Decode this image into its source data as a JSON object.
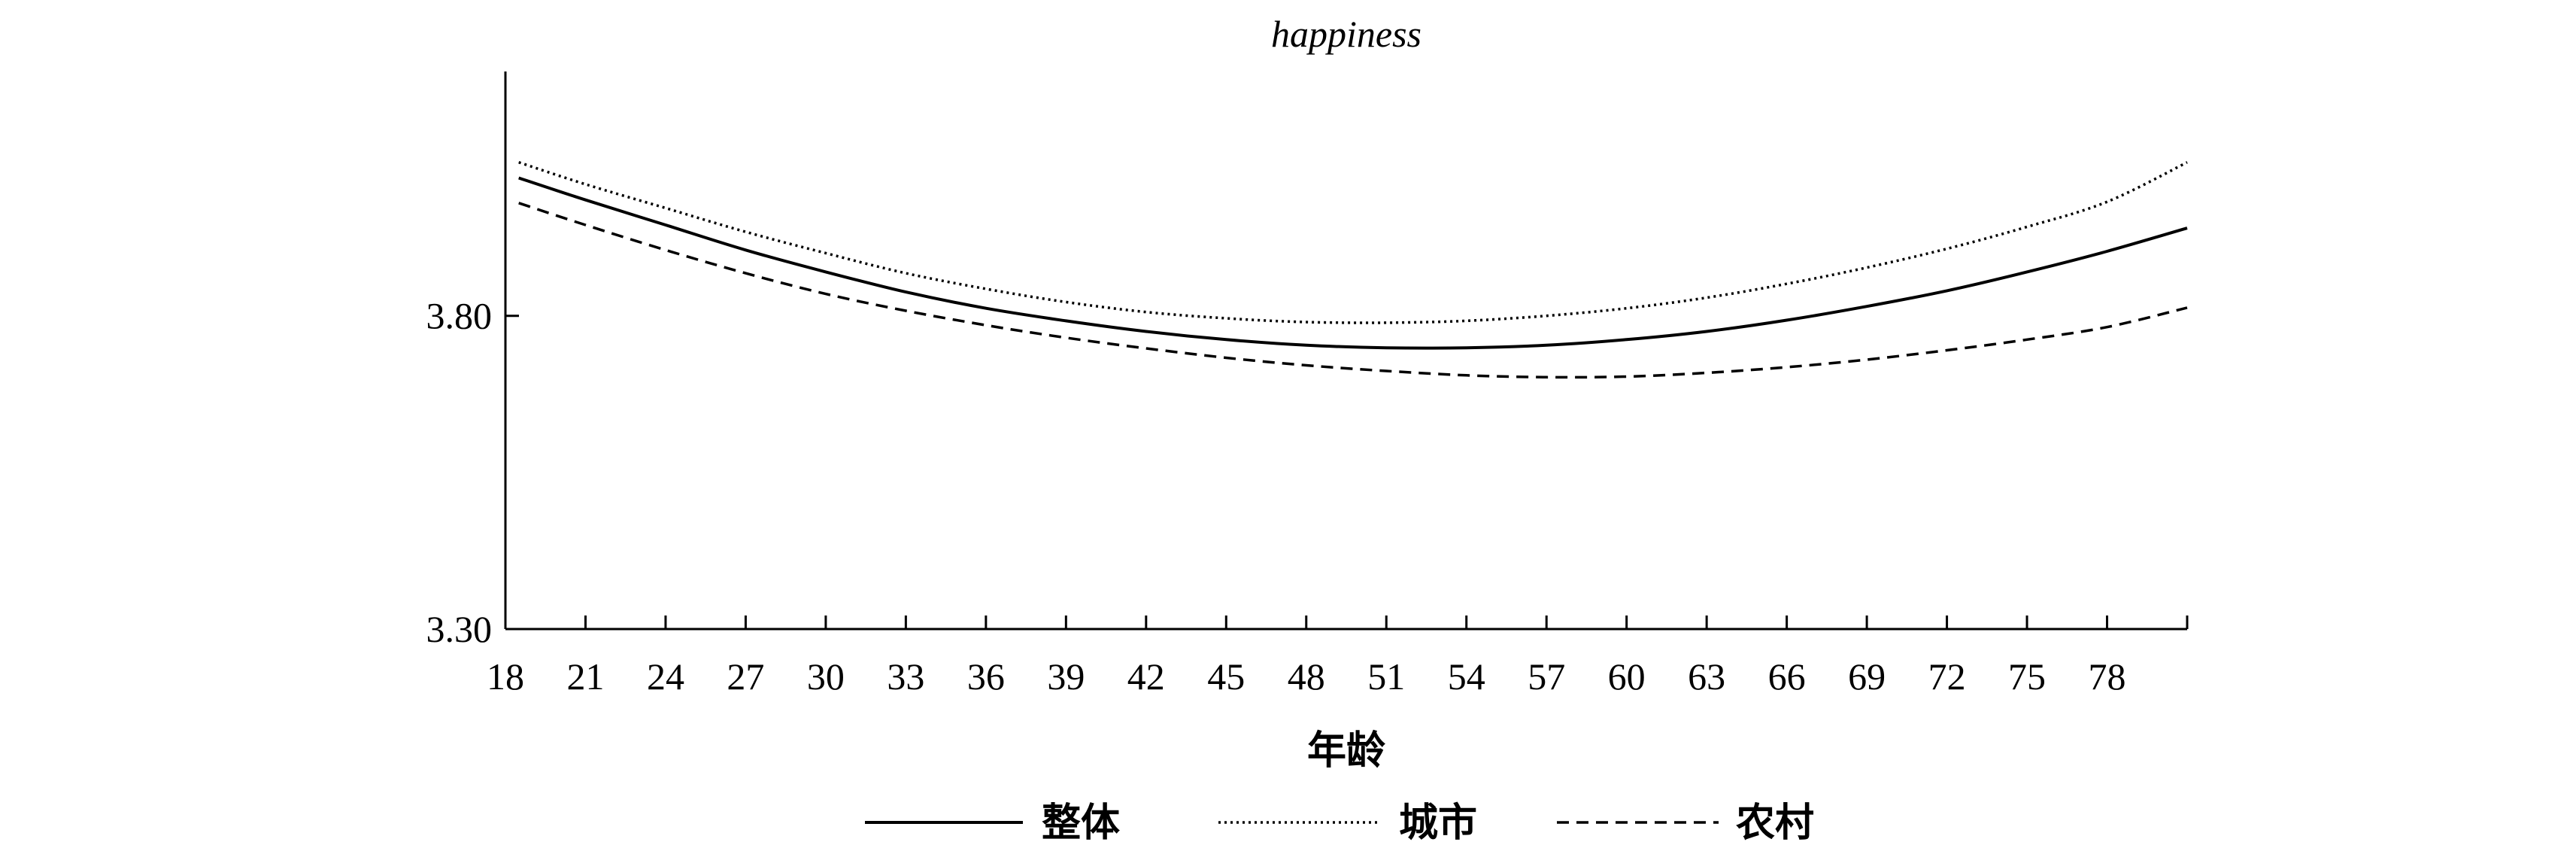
{
  "chart_data": {
    "type": "line",
    "title": "happiness",
    "xlabel": "年龄",
    "ylabel": "",
    "x_ticks": [
      18,
      21,
      24,
      27,
      30,
      33,
      36,
      39,
      42,
      45,
      48,
      51,
      54,
      57,
      60,
      63,
      66,
      69,
      72,
      75,
      78
    ],
    "y_ticks": [
      3.3,
      3.8
    ],
    "y_tick_labels": [
      "3.30",
      "3.80"
    ],
    "xlim": [
      18,
      81
    ],
    "ylim": [
      3.3,
      4.19
    ],
    "grid": false,
    "legend_position": "bottom",
    "x": [
      18.5,
      21,
      24,
      27,
      30,
      33,
      36,
      39,
      42,
      45,
      48,
      51,
      54,
      57,
      60,
      63,
      66,
      69,
      72,
      75,
      78,
      81
    ],
    "series": [
      {
        "name": "整体",
        "style": "solid",
        "values": [
          4.02,
          3.985,
          3.945,
          3.905,
          3.87,
          3.838,
          3.812,
          3.792,
          3.775,
          3.762,
          3.753,
          3.749,
          3.749,
          3.753,
          3.762,
          3.775,
          3.793,
          3.815,
          3.84,
          3.87,
          3.903,
          3.94
        ]
      },
      {
        "name": "城市",
        "style": "dotted",
        "values": [
          4.045,
          4.01,
          3.972,
          3.934,
          3.9,
          3.868,
          3.843,
          3.822,
          3.806,
          3.796,
          3.79,
          3.789,
          3.792,
          3.8,
          3.812,
          3.829,
          3.851,
          3.877,
          3.907,
          3.942,
          3.982,
          4.045
        ]
      },
      {
        "name": "农村",
        "style": "dashed",
        "values": [
          3.98,
          3.945,
          3.905,
          3.868,
          3.835,
          3.808,
          3.785,
          3.765,
          3.748,
          3.733,
          3.721,
          3.712,
          3.705,
          3.702,
          3.703,
          3.709,
          3.718,
          3.73,
          3.745,
          3.762,
          3.782,
          3.813
        ]
      }
    ]
  }
}
